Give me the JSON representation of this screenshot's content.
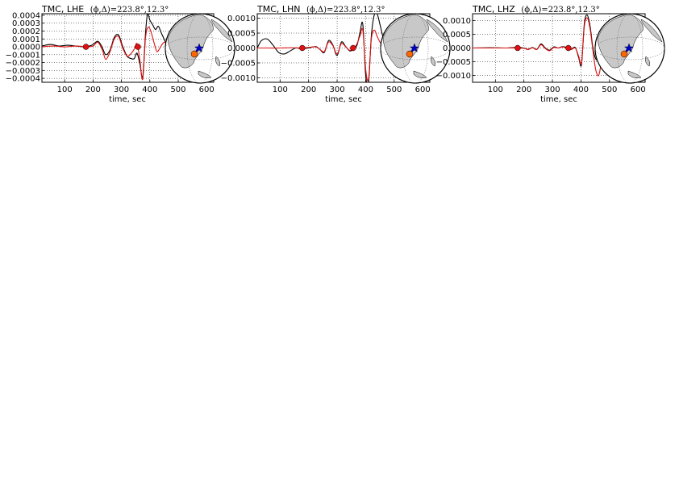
{
  "chart_data": [
    {
      "type": "line",
      "title": "TMC, LHE",
      "title_math": "(ϕ,Δ)=223.8°,12.3°",
      "xlabel": "time, sec",
      "ylabel": "",
      "xlim": [
        20,
        625
      ],
      "ylim": [
        -0.00045,
        0.00042
      ],
      "xticks": [
        100,
        200,
        300,
        400,
        500,
        600
      ],
      "yticks": [
        0.0004,
        0.0003,
        0.0002,
        0.0001,
        0.0,
        -0.0001,
        -0.0002,
        -0.0003,
        -0.0004
      ],
      "ytick_labels": [
        "0.0004",
        "0.0003",
        "0.0002",
        "0.0001",
        "0.0000",
        "−0.0001",
        "−0.0002",
        "−0.0003",
        "−0.0004"
      ],
      "grid": true,
      "series": [
        {
          "color": "#000000",
          "x": [
            20,
            50,
            80,
            110,
            140,
            170,
            195,
            215,
            225,
            235,
            245,
            260,
            275,
            290,
            305,
            320,
            335,
            345,
            355,
            365,
            375,
            385,
            392,
            400,
            410,
            420,
            430,
            440,
            450,
            460,
            470,
            480,
            490,
            500,
            505
          ],
          "y": [
            1e-05,
            3e-05,
            1e-05,
            2e-05,
            1e-05,
            0.0,
            2e-05,
            7e-05,
            4e-05,
            -3e-05,
            -0.0001,
            -4e-05,
            0.00012,
            0.00015,
            0.0,
            -0.00012,
            -0.00015,
            -0.00015,
            -8e-05,
            -0.00022,
            -0.00038,
            0.00018,
            0.00042,
            0.00034,
            0.00028,
            0.00022,
            0.00026,
            0.00018,
            0.0001,
            2e-05,
            -4e-05,
            -8e-05,
            -3e-05,
            2e-05,
            4e-05
          ]
        },
        {
          "color": "#e01010",
          "x": [
            20,
            60,
            100,
            140,
            180,
            200,
            215,
            225,
            235,
            245,
            260,
            275,
            290,
            305,
            320,
            335,
            345,
            355,
            365,
            375,
            385,
            395,
            405,
            415,
            425,
            435,
            445,
            455,
            465,
            475,
            485,
            495,
            505
          ],
          "y": [
            0.0,
            1e-05,
            0.0,
            1e-05,
            0.0,
            1e-05,
            6e-05,
            2e-05,
            -6e-05,
            -0.00016,
            -6e-05,
            0.0001,
            0.00013,
            -2e-05,
            -0.00012,
            -8e-05,
            -3e-05,
            4e-05,
            -0.00017,
            -0.00041,
            0.00012,
            0.00025,
            0.00018,
            5e-05,
            -6e-05,
            -2e-05,
            4e-05,
            6e-05,
            3e-05,
            0.0,
            -3e-05,
            -2e-05,
            0.0
          ]
        }
      ],
      "markers": [
        {
          "x": 175,
          "y": 0.0
        },
        {
          "x": 358,
          "y": 0.0
        }
      ],
      "marker_color": "#e01010"
    },
    {
      "type": "line",
      "title": "TMC, LHN",
      "title_math": "(ϕ,Δ)=223.8°,12.3°",
      "xlabel": "time, sec",
      "ylabel": "",
      "xlim": [
        20,
        625
      ],
      "ylim": [
        -0.00115,
        0.00115
      ],
      "xticks": [
        100,
        200,
        300,
        400,
        500,
        600
      ],
      "yticks": [
        0.001,
        0.0005,
        0.0,
        -0.0005,
        -0.001
      ],
      "ytick_labels": [
        "0.0010",
        "0.0005",
        "0.0000",
        "−0.0005",
        "−0.0010"
      ],
      "grid": true,
      "series": [
        {
          "color": "#000000",
          "x": [
            20,
            35,
            55,
            75,
            95,
            115,
            135,
            155,
            175,
            200,
            225,
            240,
            255,
            270,
            285,
            300,
            315,
            330,
            345,
            360,
            370,
            380,
            390,
            400,
            410,
            420,
            430,
            440,
            450,
            460,
            470
          ],
          "y": [
            0.0,
            0.00025,
            0.0003,
            0.0001,
            -0.00015,
            -0.0002,
            -0.0001,
            0.0,
            -2e-05,
            0.0,
            5e-05,
            -5e-05,
            -0.00015,
            0.00025,
            0.0001,
            -0.00025,
            0.0002,
            5e-05,
            -0.0001,
            -2e-05,
            0.0001,
            0.0005,
            0.0008,
            -0.0009,
            -0.0012,
            0.0004,
            0.0011,
            0.00115,
            0.0008,
            0.0004,
            0.0001
          ]
        },
        {
          "color": "#e01010",
          "x": [
            20,
            60,
            100,
            140,
            175,
            200,
            225,
            240,
            255,
            270,
            285,
            300,
            315,
            330,
            345,
            360,
            370,
            380,
            390,
            400,
            410,
            420,
            430,
            440,
            450,
            460,
            470
          ],
          "y": [
            0.0,
            0.0,
            0.0,
            1e-05,
            0.0,
            2e-05,
            4e-05,
            -5e-05,
            -0.00012,
            0.0002,
            8e-05,
            -0.0002,
            0.00015,
            4e-05,
            -8e-05,
            0.0,
            0.00015,
            0.0004,
            0.0006,
            -0.0007,
            -0.00105,
            0.0003,
            0.0006,
            0.0004,
            0.0002,
            8e-05,
            0.0
          ]
        }
      ],
      "markers": [
        {
          "x": 178,
          "y": 0.0
        },
        {
          "x": 356,
          "y": 0.0
        }
      ],
      "marker_color": "#e01010"
    },
    {
      "type": "line",
      "title": "TMC, LHZ",
      "title_math": "(ϕ,Δ)=223.8°,12.3°",
      "xlabel": "time, sec",
      "ylabel": "",
      "xlim": [
        20,
        625
      ],
      "ylim": [
        -0.00125,
        0.00125
      ],
      "xticks": [
        100,
        200,
        300,
        400,
        500,
        600
      ],
      "yticks": [
        0.001,
        0.0005,
        0.0,
        -0.0005,
        -0.001
      ],
      "ytick_labels": [
        "0.0010",
        "0.0005",
        "0.0000",
        "−0.0005",
        "−0.0010"
      ],
      "grid": true,
      "series": [
        {
          "color": "#000000",
          "x": [
            20,
            80,
            140,
            175,
            200,
            215,
            230,
            245,
            260,
            275,
            290,
            305,
            320,
            335,
            350,
            365,
            380,
            392,
            402,
            412,
            422,
            432,
            442,
            452,
            462,
            472
          ],
          "y": [
            0.0,
            1e-05,
            0.0,
            2e-05,
            0.0,
            -5e-05,
            2e-05,
            -5e-05,
            0.00015,
            0.0,
            -8e-05,
            4e-05,
            0.0,
            5e-05,
            2e-05,
            -5e-05,
            2e-05,
            -0.00035,
            -0.0006,
            0.0009,
            0.0012,
            0.0008,
            0.0,
            -0.0004,
            -0.0004,
            -0.0002
          ]
        },
        {
          "color": "#e01010",
          "x": [
            20,
            80,
            140,
            175,
            200,
            215,
            230,
            245,
            260,
            275,
            290,
            305,
            320,
            335,
            350,
            365,
            380,
            392,
            402,
            412,
            422,
            432,
            442,
            452,
            462,
            472
          ],
          "y": [
            0.0,
            0.0,
            0.0,
            0.0,
            -1e-05,
            -6e-05,
            1e-05,
            -6e-05,
            0.00012,
            -2e-05,
            -0.0001,
            2e-05,
            0.0,
            4e-05,
            0.0,
            -6e-05,
            0.0,
            -0.0003,
            -0.00055,
            0.0008,
            0.0011,
            0.0007,
            -0.0001,
            -0.0008,
            -0.001,
            -0.0005
          ]
        }
      ],
      "markers": [
        {
          "x": 178,
          "y": 0.0
        },
        {
          "x": 356,
          "y": 0.0
        }
      ],
      "marker_color": "#e01010"
    }
  ],
  "globe": {
    "land_color": "#c8c8c8",
    "ocean_color": "#ffffff",
    "station_color": "#ff6600",
    "event_color": "#0000cc",
    "path_color": "#0000cc"
  }
}
